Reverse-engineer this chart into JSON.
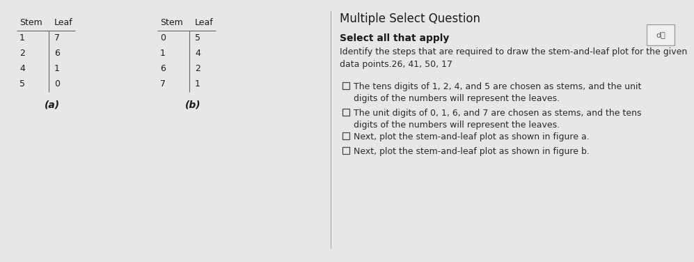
{
  "bg_color": "#e8e6e8",
  "table_a": {
    "label": "(a)",
    "stems": [
      "1",
      "2",
      "4",
      "5"
    ],
    "leaves": [
      "7",
      "6",
      "1",
      "0"
    ]
  },
  "table_b": {
    "label": "(b)",
    "stems": [
      "0",
      "1",
      "6",
      "7"
    ],
    "leaves": [
      "5",
      "4",
      "2",
      "1"
    ]
  },
  "right_title": "Multiple Select Question",
  "right_subtitle": "Select all that apply",
  "right_question": "Identify the steps that are required to draw the stem-and-leaf plot for the given\ndata points.26, 41, 50, 17",
  "options": [
    "The tens digits of 1, 2, 4, and 5 are chosen as stems, and the unit\ndigits of the numbers will represent the leaves.",
    "The unit digits of 0, 1, 6, and 7 are chosen as stems, and the tens\ndigits of the numbers will represent the leaves.",
    "Next, plot the stem-and-leaf plot as shown in figure a.",
    "Next, plot the stem-and-leaf plot as shown in figure b."
  ],
  "speaker_symbol": "d⧸",
  "table_header_fontsize": 9,
  "table_data_fontsize": 9,
  "title_fontsize": 12,
  "subtitle_fontsize": 10,
  "question_fontsize": 9,
  "option_fontsize": 9
}
